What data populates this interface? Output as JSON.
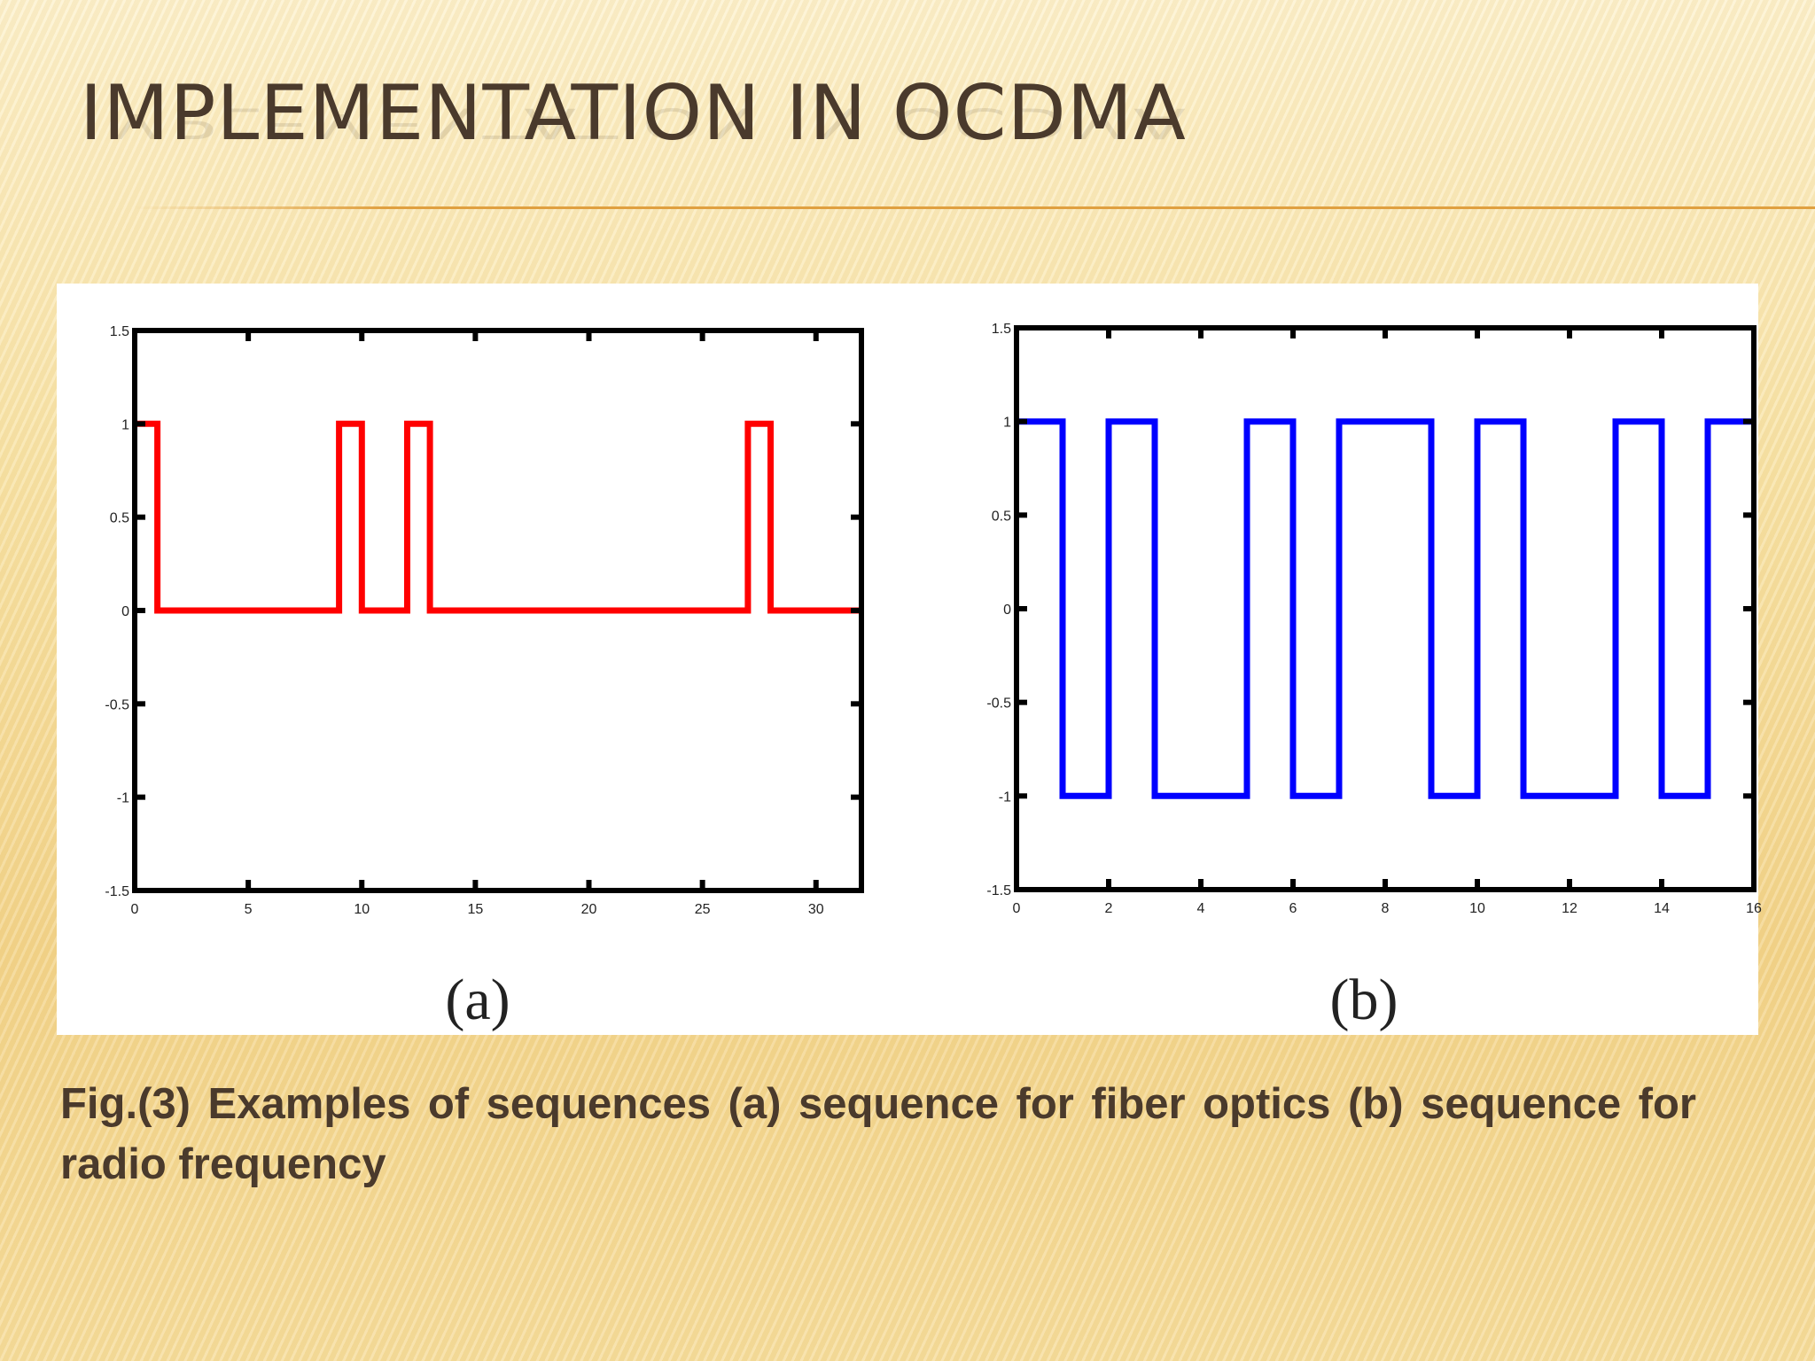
{
  "slide": {
    "title": "IMPLEMENTATION IN OCDMA",
    "caption": "Fig.(3) Examples of sequences (a) sequence for fiber optics (b) sequence for radio frequency"
  },
  "chart_data": [
    {
      "type": "line",
      "step": true,
      "panel_label": "(a)",
      "color": "#ff0000",
      "xlim": [
        0,
        32
      ],
      "ylim": [
        -1.5,
        1.5
      ],
      "xticks": [
        0,
        5,
        10,
        15,
        20,
        25,
        30
      ],
      "xtick_labels": [
        "0",
        "5",
        "10",
        "15",
        "20",
        "25",
        "30"
      ],
      "yticks": [
        -1.5,
        -1,
        -0.5,
        0,
        0.5,
        1,
        1.5
      ],
      "ytick_labels": [
        "-1.5",
        "-1",
        "-0.5",
        "0",
        "0.5",
        "1",
        "1.5"
      ],
      "x": [
        0,
        1,
        1,
        9,
        9,
        10,
        10,
        12,
        12,
        13,
        13,
        27,
        27,
        28,
        28,
        32
      ],
      "y": [
        1,
        1,
        0,
        0,
        1,
        1,
        0,
        0,
        1,
        1,
        0,
        0,
        1,
        1,
        0,
        0
      ],
      "grid": false
    },
    {
      "type": "line",
      "step": true,
      "panel_label": "(b)",
      "color": "#0000ff",
      "xlim": [
        0,
        16
      ],
      "ylim": [
        -1.5,
        1.5
      ],
      "xticks": [
        0,
        2,
        4,
        6,
        8,
        10,
        12,
        14,
        16
      ],
      "xtick_labels": [
        "0",
        "2",
        "4",
        "6",
        "8",
        "10",
        "12",
        "14",
        "16"
      ],
      "yticks": [
        -1.5,
        -1,
        -0.5,
        0,
        0.5,
        1,
        1.5
      ],
      "ytick_labels": [
        "-1.5",
        "-1",
        "-0.5",
        "0",
        "0.5",
        "1",
        "1.5"
      ],
      "x": [
        0,
        1,
        1,
        2,
        2,
        3,
        3,
        5,
        5,
        6,
        6,
        7,
        7,
        9,
        9,
        10,
        10,
        11,
        11,
        13,
        13,
        14,
        14,
        15,
        15,
        16
      ],
      "y": [
        1,
        1,
        -1,
        -1,
        1,
        1,
        -1,
        -1,
        1,
        1,
        -1,
        -1,
        1,
        1,
        -1,
        -1,
        1,
        1,
        -1,
        -1,
        1,
        1,
        -1,
        -1,
        1,
        1
      ],
      "grid": false
    }
  ]
}
